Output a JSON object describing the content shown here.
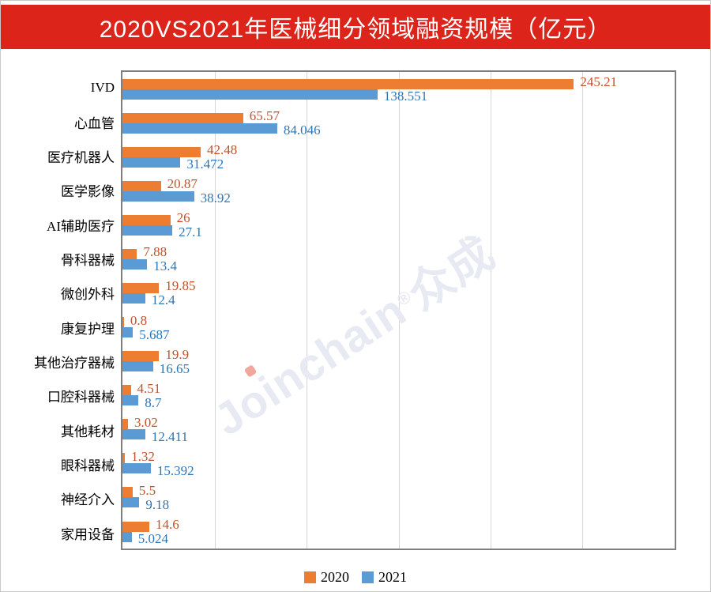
{
  "banner": {
    "title": "2020VS2021年医械细分领域融资规模（亿元）",
    "bg_color": "#dd241b",
    "text_color": "#ffffff"
  },
  "watermark": {
    "text": "Joinchain®众成"
  },
  "legend": {
    "position": "bottom",
    "items": [
      {
        "label": "2020",
        "color": "#ED7D31"
      },
      {
        "label": "2021",
        "color": "#5B9BD5"
      }
    ]
  },
  "chart_data": {
    "type": "bar",
    "orientation": "horizontal",
    "title": "2020VS2021年医械细分领域融资规模（亿元）",
    "xlabel": "",
    "ylabel": "",
    "xlim": [
      0,
      300
    ],
    "grid_step": 50,
    "grid": "on",
    "legend_position": "bottom",
    "categories": [
      "IVD",
      "心血管",
      "医疗机器人",
      "医学影像",
      "AI辅助医疗",
      "骨科器械",
      "微创外科",
      "康复护理",
      "其他治疗器械",
      "口腔科器械",
      "其他耗材",
      "眼科器械",
      "神经介入",
      "家用设备"
    ],
    "series": [
      {
        "name": "2020",
        "color": "#ED7D31",
        "label_color": "#C0522A",
        "values": [
          245.21,
          65.57,
          42.48,
          20.87,
          26,
          7.88,
          19.85,
          0.8,
          19.9,
          4.51,
          3.02,
          1.32,
          5.5,
          14.6
        ]
      },
      {
        "name": "2021",
        "color": "#5B9BD5",
        "label_color": "#2E75B6",
        "values": [
          138.551,
          84.046,
          31.472,
          38.92,
          27.1,
          13.4,
          12.4,
          5.687,
          16.65,
          8.7,
          12.411,
          15.392,
          9.18,
          5.024
        ]
      }
    ]
  }
}
